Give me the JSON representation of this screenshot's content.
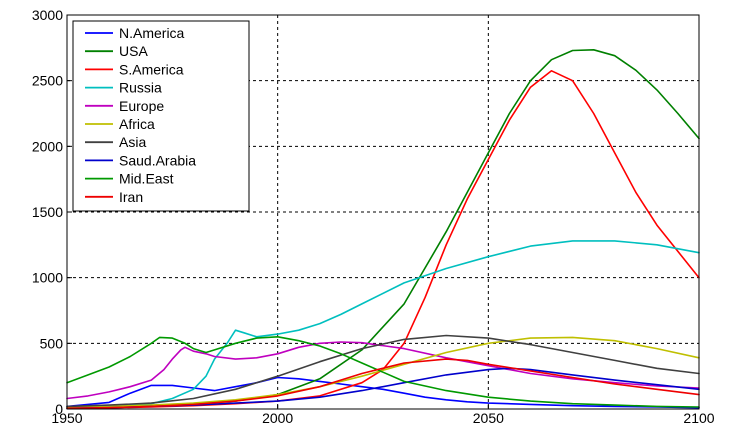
{
  "chart_data": {
    "type": "line",
    "title": "",
    "xlabel": "",
    "ylabel": "",
    "xlim": [
      1950,
      2100
    ],
    "ylim": [
      0,
      3000
    ],
    "xticks": [
      1950,
      2000,
      2050,
      2100
    ],
    "yticks": [
      0,
      500,
      1000,
      1500,
      2000,
      2500,
      3000
    ],
    "grid": "dashed at major ticks",
    "legend_position": "top-left",
    "series": [
      {
        "name": "N.America",
        "color": "#0000ff",
        "points": [
          [
            1950,
            20
          ],
          [
            1960,
            50
          ],
          [
            1965,
            120
          ],
          [
            1970,
            180
          ],
          [
            1975,
            180
          ],
          [
            1980,
            160
          ],
          [
            1985,
            140
          ],
          [
            1990,
            170
          ],
          [
            1995,
            200
          ],
          [
            2000,
            240
          ],
          [
            2005,
            230
          ],
          [
            2010,
            210
          ],
          [
            2015,
            190
          ],
          [
            2020,
            170
          ],
          [
            2025,
            150
          ],
          [
            2030,
            120
          ],
          [
            2035,
            90
          ],
          [
            2040,
            70
          ],
          [
            2045,
            55
          ],
          [
            2050,
            45
          ],
          [
            2060,
            35
          ],
          [
            2070,
            25
          ],
          [
            2080,
            20
          ],
          [
            2090,
            15
          ],
          [
            2100,
            10
          ]
        ]
      },
      {
        "name": "USA",
        "color": "#008000",
        "points": [
          [
            1950,
            10
          ],
          [
            1960,
            15
          ],
          [
            1970,
            25
          ],
          [
            1980,
            40
          ],
          [
            1990,
            60
          ],
          [
            2000,
            110
          ],
          [
            2010,
            230
          ],
          [
            2020,
            450
          ],
          [
            2030,
            800
          ],
          [
            2040,
            1350
          ],
          [
            2045,
            1650
          ],
          [
            2050,
            1950
          ],
          [
            2055,
            2250
          ],
          [
            2060,
            2500
          ],
          [
            2065,
            2660
          ],
          [
            2070,
            2730
          ],
          [
            2075,
            2735
          ],
          [
            2080,
            2690
          ],
          [
            2085,
            2580
          ],
          [
            2090,
            2430
          ],
          [
            2095,
            2250
          ],
          [
            2100,
            2060
          ]
        ]
      },
      {
        "name": "S.America",
        "color": "#ff0000",
        "points": [
          [
            1950,
            5
          ],
          [
            1960,
            10
          ],
          [
            1970,
            15
          ],
          [
            1980,
            25
          ],
          [
            1990,
            40
          ],
          [
            2000,
            60
          ],
          [
            2010,
            100
          ],
          [
            2020,
            200
          ],
          [
            2025,
            300
          ],
          [
            2030,
            500
          ],
          [
            2035,
            850
          ],
          [
            2040,
            1250
          ],
          [
            2045,
            1600
          ],
          [
            2050,
            1900
          ],
          [
            2055,
            2200
          ],
          [
            2060,
            2450
          ],
          [
            2065,
            2575
          ],
          [
            2070,
            2500
          ],
          [
            2075,
            2250
          ],
          [
            2080,
            1950
          ],
          [
            2085,
            1650
          ],
          [
            2090,
            1400
          ],
          [
            2095,
            1200
          ],
          [
            2100,
            1000
          ]
        ]
      },
      {
        "name": "Russia",
        "color": "#00bfbf",
        "points": [
          [
            1950,
            5
          ],
          [
            1960,
            15
          ],
          [
            1970,
            40
          ],
          [
            1975,
            80
          ],
          [
            1980,
            150
          ],
          [
            1983,
            250
          ],
          [
            1985,
            380
          ],
          [
            1988,
            500
          ],
          [
            1990,
            600
          ],
          [
            1992,
            580
          ],
          [
            1995,
            550
          ],
          [
            2000,
            570
          ],
          [
            2005,
            600
          ],
          [
            2010,
            650
          ],
          [
            2015,
            720
          ],
          [
            2020,
            800
          ],
          [
            2030,
            960
          ],
          [
            2040,
            1070
          ],
          [
            2050,
            1160
          ],
          [
            2060,
            1240
          ],
          [
            2070,
            1280
          ],
          [
            2080,
            1280
          ],
          [
            2090,
            1250
          ],
          [
            2100,
            1190
          ]
        ]
      },
      {
        "name": "Europe",
        "color": "#bf00bf",
        "points": [
          [
            1950,
            80
          ],
          [
            1955,
            100
          ],
          [
            1960,
            130
          ],
          [
            1965,
            170
          ],
          [
            1970,
            220
          ],
          [
            1973,
            300
          ],
          [
            1975,
            380
          ],
          [
            1977,
            450
          ],
          [
            1978,
            470
          ],
          [
            1980,
            440
          ],
          [
            1983,
            420
          ],
          [
            1985,
            400
          ],
          [
            1990,
            380
          ],
          [
            1995,
            390
          ],
          [
            2000,
            420
          ],
          [
            2005,
            470
          ],
          [
            2010,
            500
          ],
          [
            2015,
            510
          ],
          [
            2020,
            505
          ],
          [
            2030,
            460
          ],
          [
            2040,
            390
          ],
          [
            2050,
            330
          ],
          [
            2060,
            270
          ],
          [
            2070,
            230
          ],
          [
            2080,
            200
          ],
          [
            2090,
            175
          ],
          [
            2100,
            160
          ]
        ]
      },
      {
        "name": "Africa",
        "color": "#bfbf00",
        "points": [
          [
            1950,
            10
          ],
          [
            1960,
            20
          ],
          [
            1970,
            30
          ],
          [
            1980,
            45
          ],
          [
            1990,
            70
          ],
          [
            2000,
            110
          ],
          [
            2010,
            170
          ],
          [
            2020,
            250
          ],
          [
            2030,
            340
          ],
          [
            2040,
            430
          ],
          [
            2050,
            500
          ],
          [
            2060,
            540
          ],
          [
            2070,
            545
          ],
          [
            2080,
            520
          ],
          [
            2090,
            460
          ],
          [
            2100,
            390
          ]
        ]
      },
      {
        "name": "Asia",
        "color": "#404040",
        "points": [
          [
            1950,
            20
          ],
          [
            1960,
            30
          ],
          [
            1970,
            45
          ],
          [
            1980,
            80
          ],
          [
            1990,
            150
          ],
          [
            2000,
            250
          ],
          [
            2010,
            360
          ],
          [
            2020,
            460
          ],
          [
            2030,
            530
          ],
          [
            2040,
            560
          ],
          [
            2050,
            540
          ],
          [
            2060,
            490
          ],
          [
            2070,
            430
          ],
          [
            2080,
            370
          ],
          [
            2090,
            310
          ],
          [
            2100,
            270
          ]
        ]
      },
      {
        "name": "Saud.Arabia",
        "color": "#0000cc",
        "points": [
          [
            1950,
            5
          ],
          [
            1960,
            10
          ],
          [
            1970,
            20
          ],
          [
            1980,
            30
          ],
          [
            1990,
            45
          ],
          [
            2000,
            60
          ],
          [
            2010,
            90
          ],
          [
            2020,
            140
          ],
          [
            2030,
            200
          ],
          [
            2040,
            260
          ],
          [
            2050,
            300
          ],
          [
            2055,
            310
          ],
          [
            2060,
            300
          ],
          [
            2070,
            260
          ],
          [
            2080,
            220
          ],
          [
            2090,
            185
          ],
          [
            2100,
            150
          ]
        ]
      },
      {
        "name": "Mid.East",
        "color": "#009900",
        "points": [
          [
            1950,
            200
          ],
          [
            1955,
            260
          ],
          [
            1960,
            320
          ],
          [
            1965,
            400
          ],
          [
            1970,
            500
          ],
          [
            1972,
            545
          ],
          [
            1975,
            540
          ],
          [
            1978,
            500
          ],
          [
            1980,
            460
          ],
          [
            1983,
            430
          ],
          [
            1985,
            450
          ],
          [
            1990,
            500
          ],
          [
            1995,
            540
          ],
          [
            2000,
            550
          ],
          [
            2005,
            520
          ],
          [
            2010,
            480
          ],
          [
            2015,
            420
          ],
          [
            2020,
            350
          ],
          [
            2025,
            280
          ],
          [
            2030,
            210
          ],
          [
            2040,
            140
          ],
          [
            2050,
            90
          ],
          [
            2060,
            60
          ],
          [
            2070,
            40
          ],
          [
            2080,
            30
          ],
          [
            2090,
            20
          ],
          [
            2100,
            15
          ]
        ]
      },
      {
        "name": "Iran",
        "color": "#ee0000",
        "points": [
          [
            1950,
            5
          ],
          [
            1960,
            10
          ],
          [
            1970,
            20
          ],
          [
            1980,
            35
          ],
          [
            1990,
            60
          ],
          [
            2000,
            100
          ],
          [
            2010,
            170
          ],
          [
            2020,
            270
          ],
          [
            2030,
            350
          ],
          [
            2040,
            380
          ],
          [
            2045,
            370
          ],
          [
            2050,
            340
          ],
          [
            2060,
            290
          ],
          [
            2070,
            240
          ],
          [
            2080,
            190
          ],
          [
            2090,
            150
          ],
          [
            2100,
            110
          ]
        ]
      }
    ]
  }
}
